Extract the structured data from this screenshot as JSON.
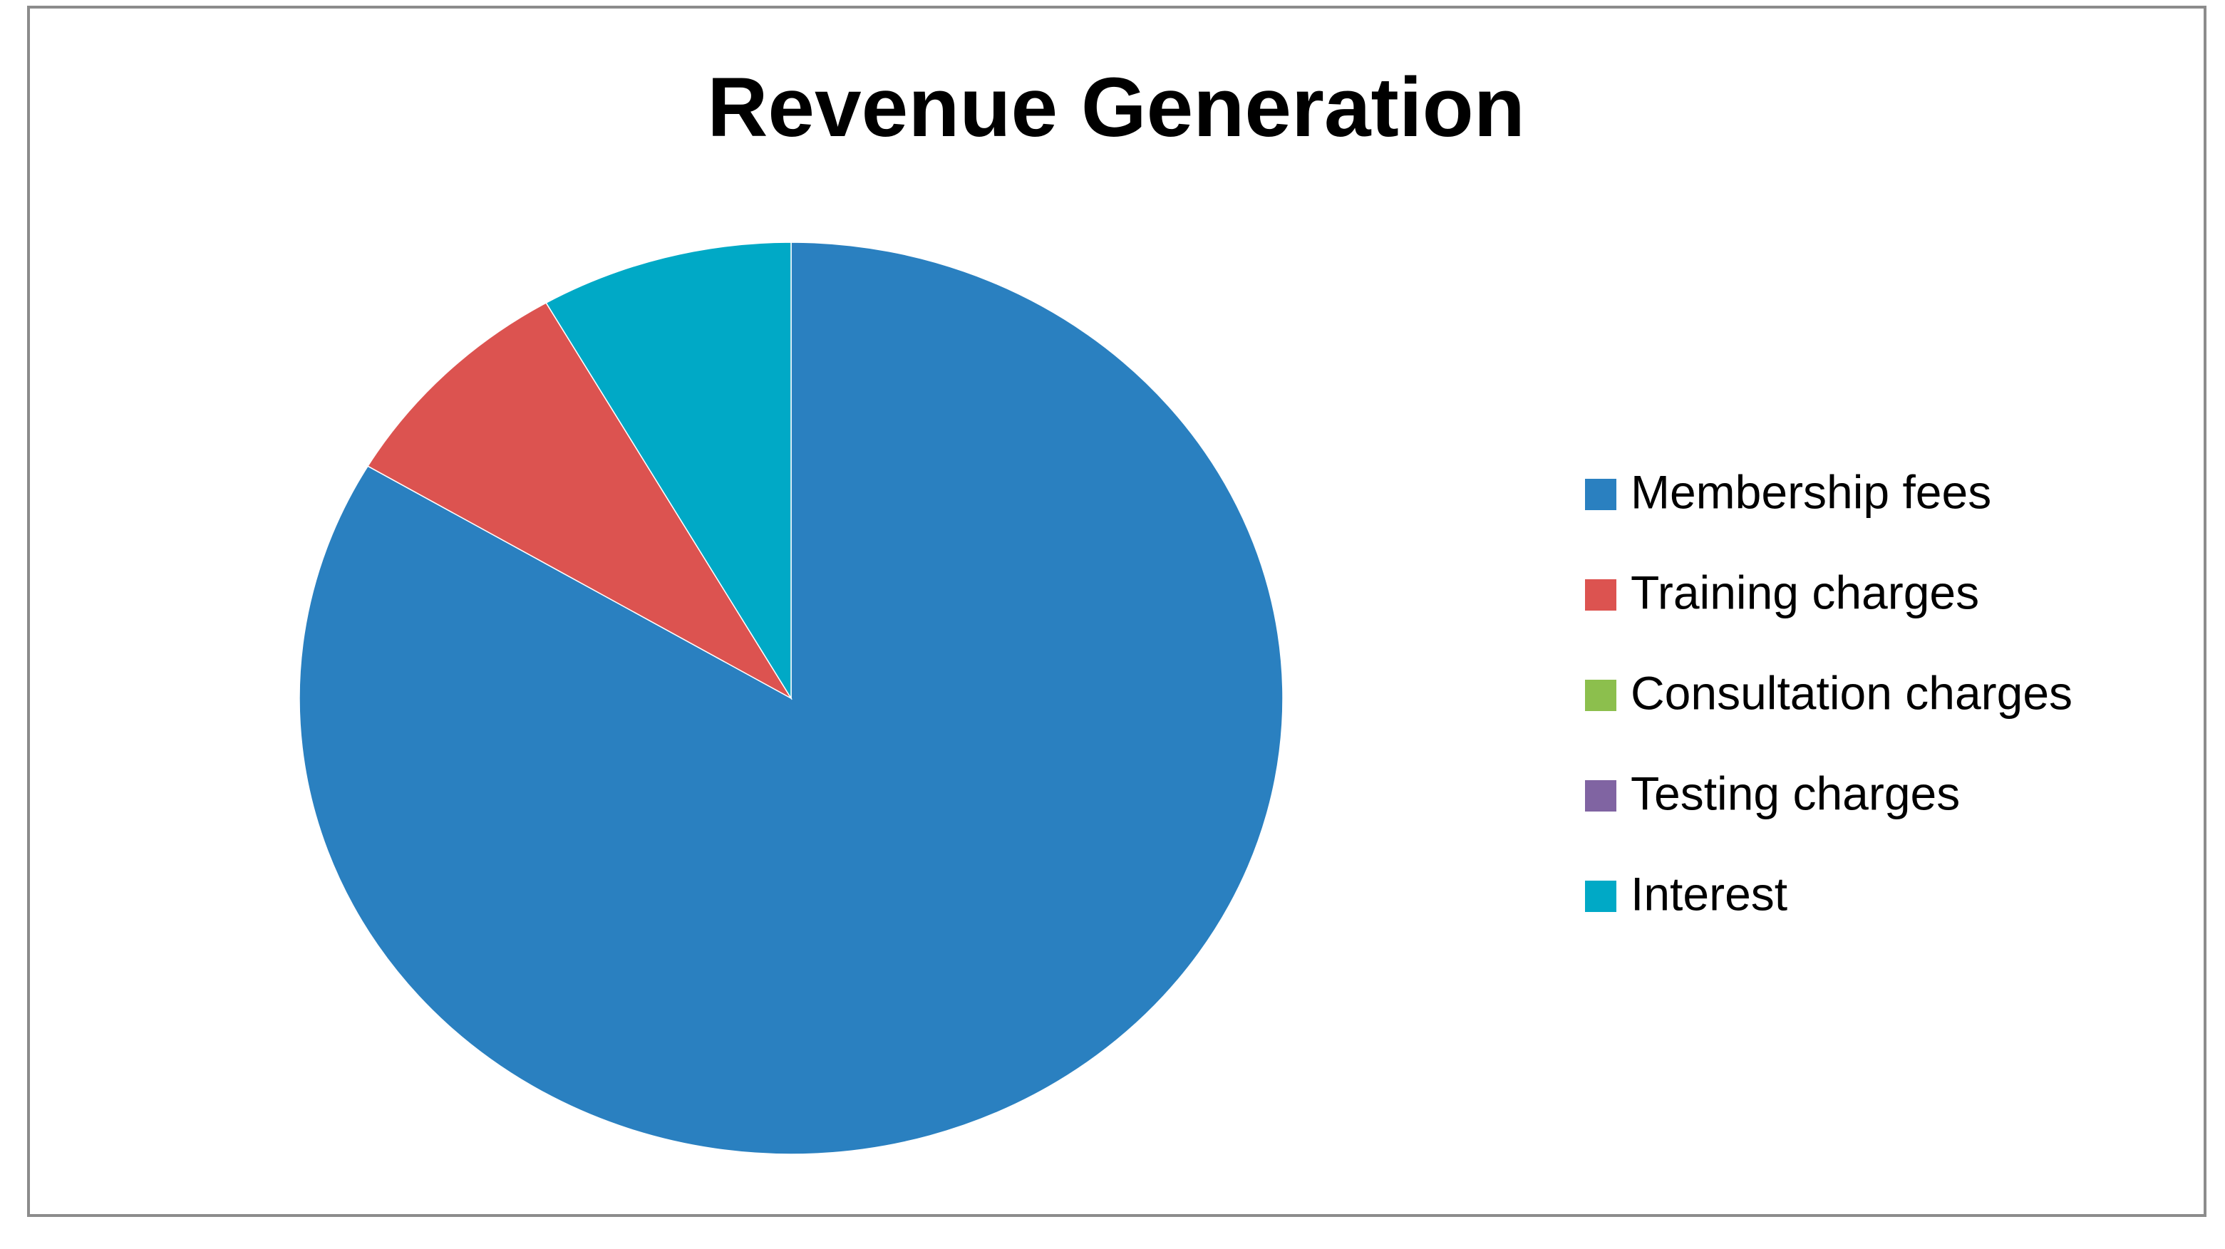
{
  "chart_data": {
    "type": "pie",
    "title": "Revenue Generation",
    "categories": [
      "Membership fees",
      "Training charges",
      "Consultation charges",
      "Testing charges",
      "Interest"
    ],
    "values": [
      83.5,
      8.2,
      0,
      0,
      8.3
    ],
    "colors": [
      "#2a80c0",
      "#dc5350",
      "#8cbf4d",
      "#8064a2",
      "#00a9c6"
    ],
    "legend": "right"
  }
}
